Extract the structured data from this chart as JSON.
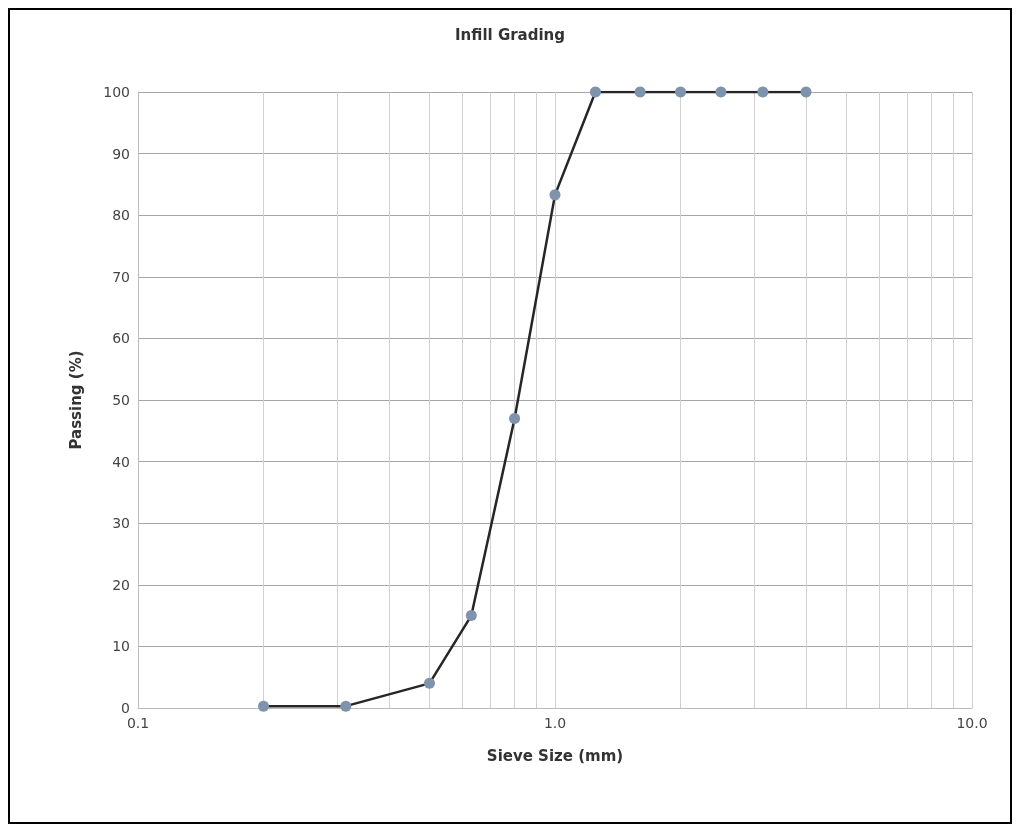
{
  "chart_data": {
    "type": "line",
    "title": "Infill Grading",
    "xlabel": "Sieve Size (mm)",
    "ylabel": "Passing (%)",
    "log": "x",
    "xlim": [
      0.1,
      10
    ],
    "xticks": [
      0.1,
      {
        "value": 1,
        "label": "1.0"
      },
      {
        "value": 10,
        "label": "10.0"
      }
    ],
    "ylim": [
      0,
      100
    ],
    "yticks": [
      0,
      10,
      20,
      30,
      40,
      50,
      60,
      70,
      80,
      90,
      100
    ],
    "grid": true,
    "marker": "circle",
    "line_style": "solid",
    "x": [
      0.2,
      0.315,
      0.5,
      0.63,
      0.8,
      1.0,
      1.25,
      1.6,
      2.0,
      2.5,
      3.15,
      4.0
    ],
    "series": [
      {
        "color": "#7f93ad",
        "values": [
          0.3,
          0.3,
          4,
          15,
          47,
          83.3,
          100,
          100,
          100,
          100,
          100,
          100
        ]
      }
    ]
  }
}
